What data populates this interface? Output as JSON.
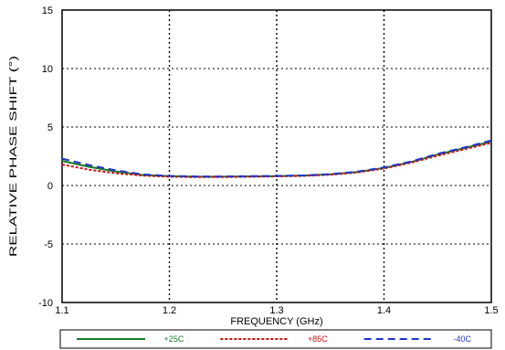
{
  "chart_data": {
    "type": "line",
    "title": "",
    "xlabel": "FREQUENCY (GHz)",
    "ylabel": "RELATIVE PHASE SHIFT (°)",
    "xlim": [
      1.1,
      1.5
    ],
    "ylim": [
      -10,
      15
    ],
    "xticks": [
      1.1,
      1.2,
      1.3,
      1.4,
      1.5
    ],
    "yticks": [
      -10,
      -5,
      0,
      5,
      10,
      15
    ],
    "xtick_labels": [
      "1.1",
      "1.2",
      "1.3",
      "1.4",
      "1.5"
    ],
    "ytick_labels": [
      "-10",
      "-5",
      "0",
      "5",
      "10",
      "15"
    ],
    "grid": true,
    "grid_style": "dotted",
    "legend_position": "bottom",
    "x": [
      1.1,
      1.125,
      1.15,
      1.175,
      1.2,
      1.225,
      1.25,
      1.275,
      1.3,
      1.325,
      1.35,
      1.375,
      1.4,
      1.425,
      1.45,
      1.475,
      1.5
    ],
    "series": [
      {
        "name": "+25C",
        "color": "#1a7a2a",
        "dash": "solid",
        "values": [
          2.1,
          1.6,
          1.2,
          0.9,
          0.8,
          0.75,
          0.75,
          0.78,
          0.8,
          0.85,
          0.95,
          1.15,
          1.5,
          2.0,
          2.65,
          3.2,
          3.75
        ]
      },
      {
        "name": "+85C",
        "color": "#cc1111",
        "dash": "dotted",
        "values": [
          1.8,
          1.35,
          1.05,
          0.85,
          0.75,
          0.72,
          0.72,
          0.75,
          0.78,
          0.82,
          0.92,
          1.12,
          1.45,
          1.95,
          2.55,
          3.1,
          3.65
        ]
      },
      {
        "name": "-40C",
        "color": "#2233cc",
        "dash": "dashed",
        "values": [
          2.3,
          1.75,
          1.3,
          0.95,
          0.82,
          0.77,
          0.77,
          0.8,
          0.82,
          0.87,
          0.98,
          1.18,
          1.55,
          2.05,
          2.7,
          3.25,
          3.85
        ]
      }
    ]
  }
}
